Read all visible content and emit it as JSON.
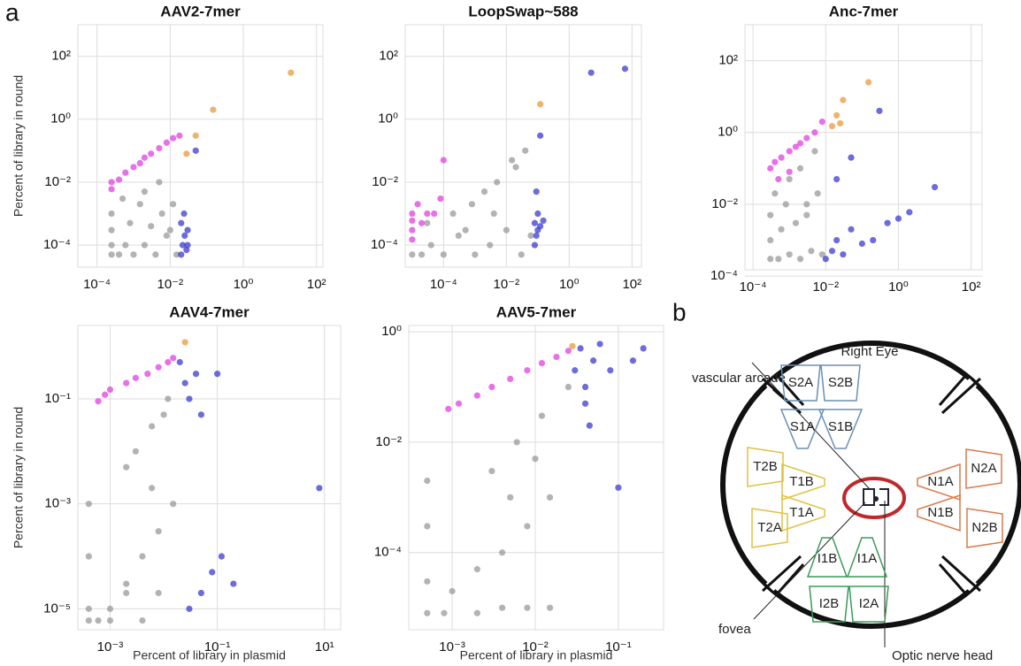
{
  "panel_a": "a",
  "chart_data": [
    {
      "type": "scatter",
      "title": "AAV2-7mer",
      "y_label": "Percent of library in round",
      "xscale": "log",
      "yscale": "log",
      "grid": true,
      "xlim": [
        3e-05,
        150
      ],
      "ylim": [
        2e-05,
        1000
      ],
      "xticks": [
        {
          "value": 0.0001,
          "label": "10⁻⁴"
        },
        {
          "value": 0.01,
          "label": "10⁻²"
        },
        {
          "value": 1,
          "label": "10⁰"
        },
        {
          "value": 100,
          "label": "10²"
        }
      ],
      "yticks": [
        {
          "value": 0.0001,
          "label": "10⁻⁴"
        },
        {
          "value": 0.01,
          "label": "10⁻²"
        },
        {
          "value": 1,
          "label": "10⁰"
        },
        {
          "value": 100,
          "label": "10²"
        }
      ],
      "series": [
        {
          "color": "#999999",
          "x": [
            0.00025,
            0.00025,
            0.00025,
            0.00025,
            0.0004,
            0.0006,
            0.001,
            0.002,
            0.004,
            0.008,
            0.015,
            0.0008,
            0.003,
            0.006,
            0.0015,
            0.01,
            0.0005,
            0.002,
            0.005,
            0.012
          ],
          "values": [
            5e-05,
            0.0001,
            0.0003,
            0.001,
            5e-05,
            0.0001,
            5e-05,
            0.0001,
            5e-05,
            0.0002,
            5e-05,
            0.0005,
            0.0004,
            0.001,
            0.002,
            0.0003,
            0.003,
            0.005,
            0.01,
            0.002
          ]
        },
        {
          "color": "#e040e0",
          "x": [
            0.00025,
            0.00025,
            0.0004,
            0.0006,
            0.001,
            0.0015,
            0.002,
            0.003,
            0.005,
            0.008,
            0.012,
            0.018
          ],
          "values": [
            0.006,
            0.01,
            0.012,
            0.02,
            0.03,
            0.04,
            0.06,
            0.08,
            0.12,
            0.18,
            0.25,
            0.3
          ]
        },
        {
          "color": "#3b3bd0",
          "x": [
            0.02,
            0.022,
            0.025,
            0.03,
            0.02,
            0.028,
            0.024,
            0.03,
            0.05
          ],
          "values": [
            5e-05,
            0.0001,
            0.0002,
            0.0001,
            0.0005,
            7e-05,
            0.001,
            0.0003,
            0.1
          ]
        },
        {
          "color": "#e89a3c",
          "x": [
            20,
            0.15,
            0.05,
            0.028
          ],
          "values": [
            30,
            2,
            0.3,
            0.08
          ]
        }
      ]
    },
    {
      "type": "scatter",
      "title": "LoopSwap~588",
      "xscale": "log",
      "yscale": "log",
      "grid": true,
      "xlim": [
        6e-06,
        200
      ],
      "ylim": [
        2e-05,
        1000
      ],
      "xticks": [
        {
          "value": 0.0001,
          "label": "10⁻⁴"
        },
        {
          "value": 0.01,
          "label": "10⁻²"
        },
        {
          "value": 1,
          "label": "10⁰"
        },
        {
          "value": 100,
          "label": "10²"
        }
      ],
      "yticks": [
        {
          "value": 0.0001,
          "label": "10⁻⁴"
        },
        {
          "value": 0.01,
          "label": "10⁻²"
        },
        {
          "value": 1,
          "label": "10⁰"
        },
        {
          "value": 100,
          "label": "10²"
        }
      ],
      "series": [
        {
          "color": "#999999",
          "x": [
            1e-05,
            2e-05,
            4e-05,
            0.0001,
            0.0003,
            0.001,
            0.003,
            0.01,
            0.03,
            0.06,
            3e-05,
            0.0002,
            0.0008,
            0.002,
            0.005,
            0.02,
            0.0005,
            0.004,
            0.015,
            0.04
          ],
          "values": [
            5e-05,
            5e-05,
            0.0001,
            5e-05,
            0.0002,
            5e-05,
            0.0001,
            0.0003,
            5e-05,
            0.0002,
            0.0005,
            0.001,
            0.002,
            0.005,
            0.01,
            0.03,
            0.0003,
            0.001,
            0.05,
            0.1
          ]
        },
        {
          "color": "#e040e0",
          "x": [
            1e-05,
            1e-05,
            1e-05,
            1e-05,
            1.5e-05,
            2e-05,
            3e-05,
            5e-05,
            8e-05,
            0.0001
          ],
          "values": [
            0.00015,
            0.0003,
            0.0006,
            0.001,
            0.002,
            0.0005,
            0.001,
            0.001,
            0.003,
            0.05
          ]
        },
        {
          "color": "#3b3bd0",
          "x": [
            0.08,
            0.09,
            0.1,
            0.08,
            0.12,
            0.1,
            0.09,
            0.15,
            0.12,
            5,
            60
          ],
          "values": [
            0.0001,
            0.0002,
            0.0003,
            0.0005,
            0.0004,
            0.001,
            0.005,
            0.0006,
            0.3,
            30,
            40
          ]
        },
        {
          "color": "#e89a3c",
          "x": [
            0.12
          ],
          "values": [
            3
          ]
        }
      ]
    },
    {
      "type": "scatter",
      "title": "Anc-7mer",
      "xscale": "log",
      "yscale": "log",
      "grid": true,
      "xlim": [
        6e-05,
        200
      ],
      "ylim": [
        0.00015,
        1000
      ],
      "xticks": [
        {
          "value": 0.0001,
          "label": "10⁻⁴"
        },
        {
          "value": 0.01,
          "label": "10⁻²"
        },
        {
          "value": 1,
          "label": "10⁰"
        },
        {
          "value": 100,
          "label": "10²"
        }
      ],
      "yticks": [
        {
          "value": 0.0001,
          "label": "10⁻⁴"
        },
        {
          "value": 0.01,
          "label": "10⁻²"
        },
        {
          "value": 1,
          "label": "10⁰"
        },
        {
          "value": 100,
          "label": "10²"
        }
      ],
      "series": [
        {
          "color": "#999999",
          "x": [
            0.0003,
            0.0003,
            0.0003,
            0.0005,
            0.001,
            0.002,
            0.004,
            0.008,
            0.0006,
            0.0015,
            0.003,
            0.006,
            0.0004,
            0.001,
            0.002,
            0.005,
            0.0008,
            0.003
          ],
          "values": [
            0.0003,
            0.001,
            0.005,
            0.0003,
            0.0004,
            0.0003,
            0.0005,
            0.0004,
            0.002,
            0.003,
            0.01,
            0.02,
            0.02,
            0.05,
            0.1,
            0.3,
            0.01,
            0.005
          ]
        },
        {
          "color": "#e040e0",
          "x": [
            0.0003,
            0.0004,
            0.0006,
            0.001,
            0.0015,
            0.002,
            0.003,
            0.005,
            0.008,
            0.0005,
            0.001
          ],
          "values": [
            0.1,
            0.15,
            0.2,
            0.3,
            0.4,
            0.5,
            0.7,
            1,
            2,
            0.05,
            0.08
          ]
        },
        {
          "color": "#3b3bd0",
          "x": [
            0.01,
            0.015,
            0.02,
            0.03,
            0.05,
            0.1,
            0.2,
            0.5,
            1,
            2,
            10,
            0.02,
            0.05,
            0.3
          ],
          "values": [
            0.0003,
            0.0005,
            0.001,
            0.0004,
            0.002,
            0.0008,
            0.001,
            0.003,
            0.004,
            0.006,
            0.03,
            0.05,
            0.2,
            4
          ]
        },
        {
          "color": "#e89a3c",
          "x": [
            0.15,
            0.03,
            0.02,
            0.015,
            0.025
          ],
          "values": [
            25,
            8,
            3,
            1.5,
            1.8
          ]
        }
      ]
    },
    {
      "type": "scatter",
      "title": "AAV4-7mer",
      "x_label": "Percent of library in plasmid",
      "y_label": "Percent of library in round",
      "xscale": "log",
      "yscale": "log",
      "grid": true,
      "xlim": [
        0.00025,
        20
      ],
      "ylim": [
        4e-06,
        2.5
      ],
      "xticks": [
        {
          "value": 0.001,
          "label": "10⁻³"
        },
        {
          "value": 0.1,
          "label": "10⁻¹"
        },
        {
          "value": 10,
          "label": "10¹"
        }
      ],
      "yticks": [
        {
          "value": 1e-05,
          "label": "10⁻⁵"
        },
        {
          "value": 0.001,
          "label": "10⁻³"
        },
        {
          "value": 0.1,
          "label": "10⁻¹"
        }
      ],
      "series": [
        {
          "color": "#999999",
          "x": [
            0.0004,
            0.0004,
            0.0004,
            0.0004,
            0.0006,
            0.001,
            0.002,
            0.004,
            0.008,
            0.015,
            0.001,
            0.002,
            0.004,
            0.008,
            0.003,
            0.006,
            0.012,
            0.002,
            0.006,
            0.01
          ],
          "values": [
            6e-06,
            1e-05,
            0.0001,
            0.001,
            6e-06,
            1e-05,
            3e-05,
            0.0001,
            0.0003,
            0.001,
            6e-06,
            2e-05,
            6e-06,
            2e-05,
            0.01,
            0.03,
            0.1,
            0.005,
            0.002,
            0.05
          ]
        },
        {
          "color": "#e040e0",
          "x": [
            0.0006,
            0.0008,
            0.001,
            0.002,
            0.003,
            0.005,
            0.008,
            0.012,
            0.015
          ],
          "values": [
            0.09,
            0.12,
            0.15,
            0.2,
            0.25,
            0.3,
            0.4,
            0.5,
            0.6
          ]
        },
        {
          "color": "#3b3bd0",
          "x": [
            0.02,
            0.025,
            0.03,
            0.04,
            0.05,
            0.08,
            0.12,
            0.2,
            0.03,
            0.05,
            0.1,
            8
          ],
          "values": [
            0.5,
            0.2,
            0.1,
            0.3,
            2e-05,
            5e-05,
            0.0001,
            3e-05,
            1e-05,
            0.05,
            0.3,
            0.002
          ]
        },
        {
          "color": "#e89a3c",
          "x": [
            0.025
          ],
          "values": [
            1.2
          ]
        }
      ]
    },
    {
      "type": "scatter",
      "title": "AAV5-7mer",
      "x_label": "Percent of library in plasmid",
      "xscale": "log",
      "yscale": "log",
      "grid": true,
      "xlim": [
        0.0003,
        0.35
      ],
      "ylim": [
        4e-06,
        1.3
      ],
      "xticks": [
        {
          "value": 0.001,
          "label": "10⁻³"
        },
        {
          "value": 0.01,
          "label": "10⁻²"
        },
        {
          "value": 0.1,
          "label": "10⁻¹"
        }
      ],
      "yticks": [
        {
          "value": 0.0001,
          "label": "10⁻⁴"
        },
        {
          "value": 0.01,
          "label": "10⁻²"
        },
        {
          "value": 1,
          "label": "10⁰"
        }
      ],
      "series": [
        {
          "color": "#999999",
          "x": [
            0.0005,
            0.0005,
            0.0005,
            0.0005,
            0.0008,
            0.001,
            0.002,
            0.004,
            0.008,
            0.015,
            0.002,
            0.004,
            0.008,
            0.015,
            0.003,
            0.006,
            0.012,
            0.025,
            0.005,
            0.01
          ],
          "values": [
            8e-06,
            3e-05,
            0.0003,
            0.002,
            8e-06,
            2e-05,
            5e-05,
            0.0001,
            0.0003,
            0.001,
            8e-06,
            1e-05,
            1e-05,
            1e-05,
            0.003,
            0.01,
            0.03,
            0.1,
            0.001,
            0.005
          ]
        },
        {
          "color": "#e040e0",
          "x": [
            0.0009,
            0.0012,
            0.002,
            0.003,
            0.005,
            0.008,
            0.012,
            0.018,
            0.025
          ],
          "values": [
            0.04,
            0.05,
            0.07,
            0.1,
            0.14,
            0.2,
            0.27,
            0.35,
            0.45
          ]
        },
        {
          "color": "#3b3bd0",
          "x": [
            0.03,
            0.035,
            0.04,
            0.05,
            0.04,
            0.06,
            0.08,
            0.1,
            0.15,
            0.2,
            0.045
          ],
          "values": [
            0.2,
            0.5,
            0.1,
            0.3,
            0.05,
            0.6,
            0.2,
            0.0015,
            0.3,
            0.5,
            0.02
          ]
        },
        {
          "color": "#e89a3c",
          "x": [
            0.028
          ],
          "values": [
            0.55
          ]
        }
      ]
    }
  ],
  "diagram": {
    "panel_label": "b",
    "title": "Right Eye",
    "annotations": [
      "vascular arcade",
      "fovea",
      "Optic nerve head"
    ],
    "sectors": [
      "S2A",
      "S2B",
      "S1A",
      "S1B",
      "T2B",
      "T1B",
      "T1A",
      "T2A",
      "N1A",
      "N2A",
      "N1B",
      "N2B",
      "I1B",
      "I1A",
      "I2B",
      "I2A"
    ]
  }
}
